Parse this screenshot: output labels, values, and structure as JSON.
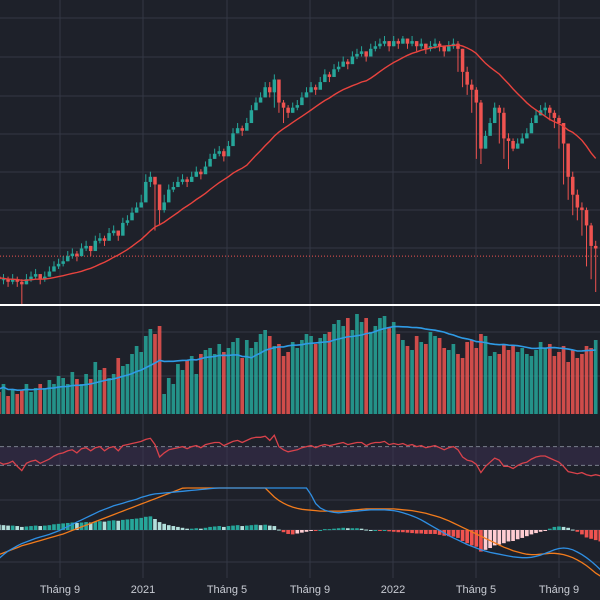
{
  "colors": {
    "background": "#1e212a",
    "grid": "#343844",
    "up": "#26a69a",
    "down": "#ef5350",
    "ma": "#e8433e",
    "volume_ma": "#2f9be6",
    "rsi_line": "#d9424b",
    "rsi_band": "#3a2f4e",
    "macd_line": "#2f8fe3",
    "signal_line": "#f27b1c",
    "hist_up_strong": "#26a69a",
    "hist_up_weak": "#b2dfdb",
    "hist_down_strong": "#ef5350",
    "hist_down_weak": "#ffcdd2",
    "separator": "#ffffff"
  },
  "chart_data": [
    {
      "type": "candlestick",
      "ylim": [
        0.0,
        1.0
      ],
      "x_ticks": [
        "Tháng 9",
        "2021",
        "Tháng 5",
        "Tháng 9",
        "2022",
        "Tháng 5",
        "Tháng 9"
      ],
      "moving_average": true,
      "reference_line": 0.14,
      "closes": [
        0.06,
        0.05,
        0.05,
        0.04,
        0.05,
        0.04,
        0.03,
        0.05,
        0.06,
        0.07,
        0.05,
        0.06,
        0.08,
        0.1,
        0.11,
        0.12,
        0.14,
        0.15,
        0.14,
        0.17,
        0.18,
        0.16,
        0.2,
        0.21,
        0.2,
        0.23,
        0.24,
        0.22,
        0.27,
        0.28,
        0.31,
        0.33,
        0.35,
        0.43,
        0.45,
        0.42,
        0.32,
        0.35,
        0.4,
        0.41,
        0.43,
        0.44,
        0.43,
        0.45,
        0.47,
        0.46,
        0.49,
        0.52,
        0.54,
        0.55,
        0.53,
        0.57,
        0.62,
        0.64,
        0.63,
        0.66,
        0.71,
        0.74,
        0.76,
        0.8,
        0.78,
        0.83,
        0.74,
        0.72,
        0.7,
        0.72,
        0.73,
        0.76,
        0.78,
        0.8,
        0.79,
        0.82,
        0.85,
        0.84,
        0.87,
        0.88,
        0.9,
        0.89,
        0.92,
        0.93,
        0.94,
        0.92,
        0.95,
        0.96,
        0.97,
        0.98,
        0.96,
        0.98,
        0.97,
        0.99,
        0.97,
        0.98,
        0.96,
        0.97,
        0.95,
        0.96,
        0.97,
        0.96,
        0.94,
        0.96,
        0.97,
        0.95,
        0.86,
        0.81,
        0.79,
        0.74,
        0.56,
        0.61,
        0.66,
        0.72,
        0.7,
        0.6,
        0.59,
        0.56,
        0.58,
        0.6,
        0.62,
        0.66,
        0.69,
        0.71,
        0.72,
        0.7,
        0.68,
        0.66,
        0.58,
        0.45,
        0.38,
        0.33,
        0.32,
        0.26,
        0.18,
        0.17
      ],
      "highs": [
        0.08,
        0.07,
        0.07,
        0.06,
        0.07,
        0.06,
        0.05,
        0.07,
        0.08,
        0.09,
        0.07,
        0.08,
        0.1,
        0.12,
        0.13,
        0.14,
        0.16,
        0.17,
        0.16,
        0.19,
        0.2,
        0.18,
        0.22,
        0.23,
        0.22,
        0.25,
        0.26,
        0.24,
        0.29,
        0.3,
        0.33,
        0.35,
        0.38,
        0.46,
        0.47,
        0.44,
        0.37,
        0.38,
        0.42,
        0.43,
        0.45,
        0.46,
        0.45,
        0.47,
        0.49,
        0.48,
        0.51,
        0.54,
        0.56,
        0.57,
        0.56,
        0.59,
        0.64,
        0.66,
        0.65,
        0.68,
        0.73,
        0.76,
        0.78,
        0.82,
        0.82,
        0.85,
        0.82,
        0.75,
        0.73,
        0.74,
        0.75,
        0.78,
        0.8,
        0.82,
        0.81,
        0.84,
        0.87,
        0.86,
        0.89,
        0.9,
        0.92,
        0.91,
        0.94,
        0.95,
        0.96,
        0.94,
        0.97,
        0.98,
        0.99,
        1.0,
        0.98,
        1.0,
        0.99,
        1.0,
        0.99,
        1.0,
        0.98,
        0.99,
        0.97,
        0.98,
        0.99,
        0.98,
        0.96,
        0.98,
        0.99,
        0.98,
        0.95,
        0.88,
        0.83,
        0.8,
        0.75,
        0.63,
        0.68,
        0.74,
        0.73,
        0.72,
        0.62,
        0.6,
        0.6,
        0.62,
        0.64,
        0.68,
        0.71,
        0.73,
        0.74,
        0.73,
        0.71,
        0.69,
        0.66,
        0.58,
        0.47,
        0.4,
        0.35,
        0.33,
        0.27,
        0.2
      ],
      "lows": [
        0.04,
        0.03,
        0.03,
        0.02,
        0.03,
        0.02,
        -0.05,
        0.03,
        0.04,
        0.05,
        0.03,
        0.04,
        0.06,
        0.08,
        0.09,
        0.1,
        0.12,
        0.13,
        0.12,
        0.15,
        0.16,
        0.14,
        0.18,
        0.19,
        0.18,
        0.21,
        0.22,
        0.2,
        0.25,
        0.26,
        0.29,
        0.31,
        0.33,
        0.41,
        0.41,
        0.24,
        0.26,
        0.31,
        0.38,
        0.39,
        0.41,
        0.42,
        0.41,
        0.43,
        0.45,
        0.44,
        0.47,
        0.5,
        0.52,
        0.53,
        0.51,
        0.55,
        0.6,
        0.62,
        0.61,
        0.64,
        0.69,
        0.72,
        0.74,
        0.78,
        0.76,
        0.72,
        0.7,
        0.66,
        0.68,
        0.7,
        0.71,
        0.74,
        0.76,
        0.78,
        0.77,
        0.8,
        0.83,
        0.82,
        0.85,
        0.86,
        0.88,
        0.87,
        0.9,
        0.91,
        0.92,
        0.9,
        0.93,
        0.94,
        0.95,
        0.96,
        0.94,
        0.96,
        0.95,
        0.97,
        0.95,
        0.96,
        0.94,
        0.95,
        0.93,
        0.94,
        0.95,
        0.94,
        0.92,
        0.94,
        0.95,
        0.86,
        0.8,
        0.77,
        0.7,
        0.52,
        0.5,
        0.56,
        0.64,
        0.68,
        0.58,
        0.52,
        0.48,
        0.55,
        0.56,
        0.58,
        0.6,
        0.64,
        0.67,
        0.69,
        0.69,
        0.67,
        0.64,
        0.56,
        0.42,
        0.36,
        0.3,
        0.28,
        0.22,
        0.1,
        0.05,
        0.0
      ]
    },
    {
      "type": "bar",
      "role": "volume",
      "ylim": [
        0.0,
        1.0
      ],
      "values": [
        0.28,
        0.22,
        0.3,
        0.18,
        0.25,
        0.2,
        0.24,
        0.3,
        0.22,
        0.26,
        0.3,
        0.26,
        0.34,
        0.3,
        0.38,
        0.36,
        0.3,
        0.42,
        0.35,
        0.3,
        0.4,
        0.35,
        0.52,
        0.44,
        0.46,
        0.36,
        0.4,
        0.56,
        0.48,
        0.5,
        0.6,
        0.68,
        0.62,
        0.78,
        0.85,
        0.8,
        0.88,
        0.2,
        0.36,
        0.3,
        0.5,
        0.44,
        0.54,
        0.58,
        0.4,
        0.6,
        0.64,
        0.66,
        0.6,
        0.7,
        0.62,
        0.66,
        0.72,
        0.76,
        0.56,
        0.74,
        0.66,
        0.72,
        0.8,
        0.84,
        0.78,
        0.68,
        0.7,
        0.58,
        0.62,
        0.72,
        0.66,
        0.74,
        0.8,
        0.78,
        0.7,
        0.76,
        0.8,
        0.82,
        0.9,
        0.94,
        0.88,
        0.96,
        0.84,
        1.0,
        0.92,
        0.96,
        0.82,
        0.88,
        0.96,
        0.98,
        0.86,
        0.92,
        0.8,
        0.74,
        0.68,
        0.64,
        0.78,
        0.72,
        0.7,
        0.82,
        0.78,
        0.76,
        0.66,
        0.64,
        0.7,
        0.6,
        0.56,
        0.72,
        0.74,
        0.66,
        0.8,
        0.78,
        0.58,
        0.62,
        0.6,
        0.7,
        0.64,
        0.68,
        0.62,
        0.66,
        0.6,
        0.58,
        0.64,
        0.72,
        0.66,
        0.7,
        0.58,
        0.62,
        0.68,
        0.52,
        0.64,
        0.56,
        0.6,
        0.68,
        0.66,
        0.74
      ],
      "up": [
        1,
        0,
        1,
        0,
        1,
        0,
        0,
        1,
        1,
        1,
        0,
        1,
        1,
        1,
        1,
        1,
        1,
        1,
        0,
        1,
        1,
        0,
        1,
        1,
        0,
        1,
        1,
        0,
        1,
        1,
        1,
        1,
        1,
        1,
        1,
        0,
        0,
        1,
        1,
        1,
        1,
        1,
        0,
        1,
        1,
        0,
        1,
        1,
        1,
        1,
        0,
        1,
        1,
        1,
        0,
        1,
        1,
        1,
        1,
        1,
        0,
        1,
        0,
        0,
        0,
        1,
        1,
        1,
        1,
        1,
        0,
        1,
        1,
        0,
        1,
        1,
        1,
        0,
        1,
        1,
        1,
        0,
        1,
        1,
        1,
        1,
        0,
        1,
        0,
        1,
        0,
        1,
        0,
        1,
        0,
        1,
        1,
        0,
        0,
        1,
        1,
        0,
        0,
        0,
        0,
        0,
        0,
        1,
        1,
        1,
        0,
        0,
        0,
        0,
        1,
        1,
        1,
        1,
        1,
        1,
        1,
        0,
        0,
        0,
        0,
        0,
        0,
        0,
        0,
        0,
        0,
        1
      ]
    },
    {
      "type": "line",
      "role": "rsi",
      "ylim": [
        0.0,
        1.0
      ],
      "band": [
        0.32,
        0.68
      ],
      "values": [
        0.42,
        0.38,
        0.34,
        0.36,
        0.4,
        0.3,
        0.22,
        0.36,
        0.4,
        0.42,
        0.36,
        0.4,
        0.44,
        0.5,
        0.54,
        0.56,
        0.6,
        0.62,
        0.56,
        0.64,
        0.66,
        0.6,
        0.66,
        0.68,
        0.6,
        0.66,
        0.68,
        0.6,
        0.7,
        0.72,
        0.74,
        0.76,
        0.78,
        0.82,
        0.84,
        0.72,
        0.48,
        0.56,
        0.62,
        0.64,
        0.66,
        0.68,
        0.64,
        0.68,
        0.7,
        0.66,
        0.72,
        0.74,
        0.76,
        0.76,
        0.7,
        0.74,
        0.78,
        0.8,
        0.76,
        0.8,
        0.84,
        0.86,
        0.86,
        0.88,
        0.8,
        0.9,
        0.68,
        0.62,
        0.58,
        0.6,
        0.62,
        0.66,
        0.68,
        0.7,
        0.66,
        0.7,
        0.72,
        0.7,
        0.72,
        0.74,
        0.76,
        0.72,
        0.74,
        0.76,
        0.76,
        0.7,
        0.74,
        0.76,
        0.76,
        0.78,
        0.72,
        0.74,
        0.72,
        0.74,
        0.7,
        0.72,
        0.68,
        0.7,
        0.66,
        0.68,
        0.7,
        0.66,
        0.62,
        0.66,
        0.68,
        0.62,
        0.48,
        0.42,
        0.4,
        0.34,
        0.18,
        0.3,
        0.38,
        0.46,
        0.42,
        0.3,
        0.3,
        0.26,
        0.32,
        0.36,
        0.38,
        0.44,
        0.48,
        0.5,
        0.5,
        0.46,
        0.42,
        0.38,
        0.3,
        0.2,
        0.18,
        0.16,
        0.18,
        0.14,
        0.12,
        0.14,
        0.12
      ]
    },
    {
      "type": "bar",
      "role": "macd",
      "ylim": [
        -1.0,
        1.0
      ],
      "histogram": [
        0.25,
        0.24,
        0.22,
        0.2,
        0.2,
        0.18,
        0.14,
        0.16,
        0.18,
        0.2,
        0.18,
        0.2,
        0.22,
        0.26,
        0.28,
        0.3,
        0.32,
        0.34,
        0.32,
        0.34,
        0.36,
        0.34,
        0.38,
        0.4,
        0.38,
        0.42,
        0.44,
        0.42,
        0.46,
        0.48,
        0.5,
        0.52,
        0.55,
        0.6,
        0.62,
        0.5,
        0.36,
        0.28,
        0.22,
        0.18,
        0.14,
        0.1,
        0.06,
        0.06,
        0.08,
        0.06,
        0.1,
        0.14,
        0.16,
        0.18,
        0.14,
        0.18,
        0.2,
        0.22,
        0.18,
        0.2,
        0.22,
        0.24,
        0.22,
        0.24,
        0.2,
        0.18,
        0.02,
        -0.1,
        -0.18,
        -0.2,
        -0.16,
        -0.12,
        -0.08,
        -0.04,
        -0.04,
        0.0,
        0.04,
        0.04,
        0.06,
        0.08,
        0.1,
        0.08,
        0.08,
        0.08,
        0.06,
        0.02,
        0.0,
        0.0,
        -0.02,
        0.0,
        -0.06,
        -0.08,
        -0.1,
        -0.1,
        -0.12,
        -0.14,
        -0.16,
        -0.16,
        -0.18,
        -0.18,
        -0.18,
        -0.22,
        -0.26,
        -0.28,
        -0.3,
        -0.36,
        -0.5,
        -0.6,
        -0.7,
        -0.76,
        -0.98,
        -0.9,
        -0.82,
        -0.7,
        -0.66,
        -0.6,
        -0.52,
        -0.5,
        -0.42,
        -0.36,
        -0.28,
        -0.2,
        -0.14,
        -0.08,
        -0.02,
        0.06,
        0.14,
        0.16,
        0.14,
        0.1,
        0.02,
        -0.08,
        -0.2,
        -0.34,
        -0.4,
        -0.46,
        -0.52,
        -0.58,
        -0.62
      ],
      "macd": [
        -1.5,
        -1.3,
        -1.12,
        -0.96,
        -0.84,
        -0.72,
        -0.62,
        -0.54,
        -0.46,
        -0.38,
        -0.32,
        -0.26,
        -0.2,
        -0.12,
        -0.04,
        0.06,
        0.16,
        0.26,
        0.36,
        0.46,
        0.56,
        0.66,
        0.76,
        0.86,
        0.94,
        1.02,
        1.1,
        1.16,
        1.22,
        1.28,
        1.34,
        1.4,
        1.48,
        1.54,
        1.6,
        1.64,
        1.66,
        1.68,
        1.7,
        1.72,
        1.74,
        1.76,
        1.78,
        1.8,
        1.82,
        1.84,
        1.86,
        1.88,
        1.9,
        1.92,
        1.94,
        1.96,
        1.98,
        2.0,
        2.02,
        2.04,
        2.06,
        2.08,
        2.1,
        2.12,
        2.14,
        2.16,
        2.18,
        2.2,
        2.22,
        2.24,
        2.26,
        2.28,
        2.3,
        1.6,
        1.2,
        1.0,
        0.9,
        0.84,
        0.8,
        0.78,
        0.8,
        0.82,
        0.84,
        0.86,
        0.88,
        0.9,
        0.92,
        0.92,
        0.92,
        0.92,
        0.9,
        0.88,
        0.84,
        0.78,
        0.72,
        0.64,
        0.56,
        0.46,
        0.34,
        0.22,
        0.1,
        -0.02,
        -0.14,
        -0.26,
        -0.36,
        -0.46,
        -0.56,
        -0.66,
        -0.74,
        -0.82,
        -0.9,
        -0.96,
        -1.02,
        -1.06,
        -1.1,
        -1.14,
        -1.18,
        -1.22,
        -1.24,
        -1.26,
        -1.26,
        -1.24,
        -1.2,
        -1.14,
        -1.06,
        -0.98,
        -0.9,
        -0.84,
        -0.82,
        -0.84,
        -0.9,
        -1.0,
        -1.12,
        -1.26,
        -1.42,
        -1.6,
        -1.8,
        -2.0
      ],
      "signal": [
        -1.2,
        -1.12,
        -1.04,
        -0.96,
        -0.88,
        -0.8,
        -0.72,
        -0.66,
        -0.6,
        -0.54,
        -0.48,
        -0.42,
        -0.36,
        -0.3,
        -0.24,
        -0.18,
        -0.1,
        -0.02,
        0.06,
        0.14,
        0.22,
        0.3,
        0.38,
        0.46,
        0.54,
        0.62,
        0.7,
        0.78,
        0.86,
        0.94,
        1.02,
        1.1,
        1.18,
        1.26,
        1.34,
        1.42,
        1.5,
        1.58,
        1.66,
        1.74,
        1.82,
        1.9,
        1.98,
        2.06,
        2.14,
        2.22,
        2.3,
        2.38,
        2.46,
        2.54,
        2.62,
        2.7,
        2.78,
        2.86,
        2.94,
        3.02,
        3.1,
        3.18,
        3.26,
        2.0,
        1.7,
        1.5,
        1.34,
        1.22,
        1.12,
        1.04,
        0.98,
        0.94,
        0.92,
        0.9,
        0.88,
        0.86,
        0.86,
        0.86,
        0.86,
        0.86,
        0.86,
        0.88,
        0.9,
        0.92,
        0.94,
        0.96,
        0.96,
        0.96,
        0.96,
        0.96,
        0.96,
        0.96,
        0.94,
        0.92,
        0.9,
        0.88,
        0.84,
        0.8,
        0.76,
        0.7,
        0.64,
        0.58,
        0.5,
        0.42,
        0.32,
        0.22,
        0.12,
        0.02,
        -0.08,
        -0.18,
        -0.28,
        -0.38,
        -0.48,
        -0.58,
        -0.68,
        -0.78,
        -0.86,
        -0.94,
        -1.0,
        -1.06,
        -1.1,
        -1.12,
        -1.12,
        -1.1,
        -1.08,
        -1.06,
        -1.06,
        -1.08,
        -1.12,
        -1.18,
        -1.26,
        -1.36,
        -1.48,
        -1.62,
        -1.78,
        -1.96,
        -2.14,
        -2.34
      ]
    }
  ]
}
